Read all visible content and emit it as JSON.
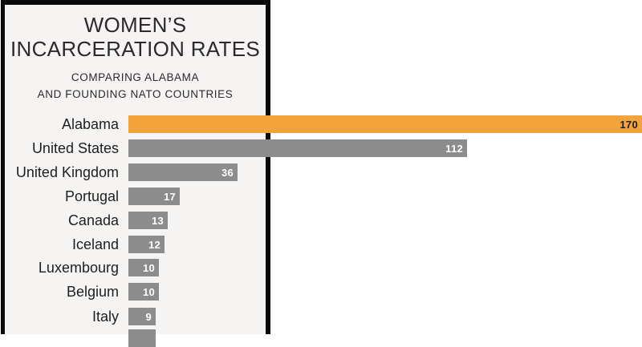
{
  "panel": {
    "title_lines": [
      "WOMEN’S",
      "INCARCERATION RATES"
    ],
    "subtitle_lines": [
      "COMPARING ALABAMA",
      "AND FOUNDING NATO COUNTRIES"
    ]
  },
  "colors": {
    "highlight_bar": "#F2A33C",
    "bar": "#8C8C8C",
    "panel_bg": "#F5F4F2",
    "border": "#0B0B0B",
    "value_text_on_gray": "#FFFFFF",
    "value_text_on_highlight": "#1E1E1E"
  },
  "chart_data": {
    "type": "bar",
    "orientation": "horizontal",
    "title": "WOMEN’S INCARCERATION RATES",
    "subtitle": "COMPARING ALABAMA AND FOUNDING NATO COUNTRIES",
    "categories": [
      "Alabama",
      "United States",
      "United Kingdom",
      "Portugal",
      "Canada",
      "Iceland",
      "Luxembourg",
      "Belgium",
      "Italy"
    ],
    "values": [
      170,
      112,
      36,
      17,
      13,
      12,
      10,
      10,
      9
    ],
    "highlight_category": "Alabama",
    "value_labels_shown": true,
    "xlim": [
      0,
      170
    ],
    "grid": false,
    "legend": false,
    "partial_row_at_bottom": {
      "visible": true,
      "approx_value": 9,
      "label_cut_off": true
    }
  }
}
